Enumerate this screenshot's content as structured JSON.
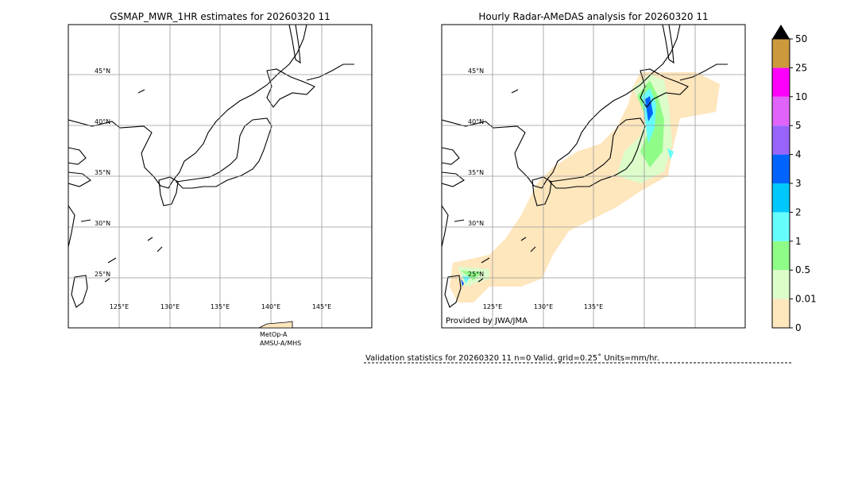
{
  "left_panel": {
    "title": "GSMAP_MWR_1HR estimates for 20260320 11",
    "lat_labels": [
      "45°N",
      "40°N",
      "35°N",
      "30°N",
      "25°N"
    ],
    "lon_labels": [
      "125°E",
      "130°E",
      "135°E",
      "140°E",
      "145°E"
    ],
    "satellite": [
      "MetOp-A",
      "AMSU-A/MHS"
    ]
  },
  "right_panel": {
    "title": "Hourly Radar-AMeDAS analysis for 20260320 11",
    "lat_labels": [
      "45°N",
      "40°N",
      "35°N",
      "30°N",
      "25°N"
    ],
    "lon_labels": [
      "125°E",
      "130°E",
      "135°E"
    ],
    "credit": "Provided by JWA/JMA"
  },
  "colorbar": {
    "labels": [
      "0",
      "0.01",
      "0.5",
      "1",
      "2",
      "3",
      "4",
      "5",
      "10",
      "25",
      "50"
    ],
    "colors": [
      "#fee6bd",
      "#dcfcca",
      "#90fc88",
      "#66fcfc",
      "#00c8fc",
      "#0064fc",
      "#9864fc",
      "#e064fc",
      "#fc00fc",
      "#cc9a3c"
    ],
    "extend_color": "#000000"
  },
  "validation": "Validation statistics for 20260320 11  n=0 Valid. grid=0.25˚ Units=mm/hr."
}
